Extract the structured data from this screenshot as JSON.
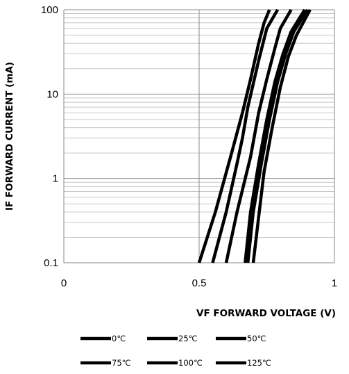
{
  "chart_data": {
    "type": "line",
    "title": "",
    "xlabel": "VF FORWARD VOLTAGE (V)",
    "ylabel": "IF FORWARD CURRENT (mA)",
    "xlim": [
      0,
      1
    ],
    "ylim": [
      0.1,
      100
    ],
    "y_scale": "log",
    "x_ticks": [
      "0",
      "0.5",
      "1"
    ],
    "y_ticks": [
      "0.1",
      "1",
      "10",
      "100"
    ],
    "grid": true,
    "legend_position": "bottom",
    "line_color": "#000000",
    "series": [
      {
        "name": "0℃",
        "x": [
          0.5,
          0.56,
          0.62,
          0.66,
          0.69,
          0.72,
          0.74,
          0.76
        ],
        "y": [
          0.1,
          0.4,
          2,
          6,
          15,
          40,
          70,
          100
        ]
      },
      {
        "name": "25℃",
        "x": [
          0.55,
          0.6,
          0.64,
          0.66,
          0.68,
          0.72,
          0.75,
          0.79
        ],
        "y": [
          0.1,
          0.4,
          1.5,
          3,
          7,
          25,
          60,
          100
        ]
      },
      {
        "name": "50℃",
        "x": [
          0.6,
          0.64,
          0.69,
          0.72,
          0.75,
          0.78,
          0.8,
          0.84
        ],
        "y": [
          0.1,
          0.4,
          1.8,
          6,
          15,
          35,
          60,
          100
        ]
      },
      {
        "name": "75℃",
        "x": [
          0.67,
          0.69,
          0.72,
          0.75,
          0.78,
          0.81,
          0.84,
          0.89
        ],
        "y": [
          0.1,
          0.4,
          1.5,
          5,
          14,
          30,
          55,
          100
        ]
      },
      {
        "name": "100℃",
        "x": [
          0.68,
          0.7,
          0.73,
          0.76,
          0.79,
          0.82,
          0.85,
          0.9
        ],
        "y": [
          0.1,
          0.4,
          1.5,
          5,
          14,
          30,
          55,
          100
        ]
      },
      {
        "name": "125℃",
        "x": [
          0.7,
          0.72,
          0.74,
          0.77,
          0.8,
          0.83,
          0.86,
          0.91
        ],
        "y": [
          0.1,
          0.35,
          1.2,
          4,
          12,
          28,
          50,
          100
        ]
      }
    ]
  }
}
